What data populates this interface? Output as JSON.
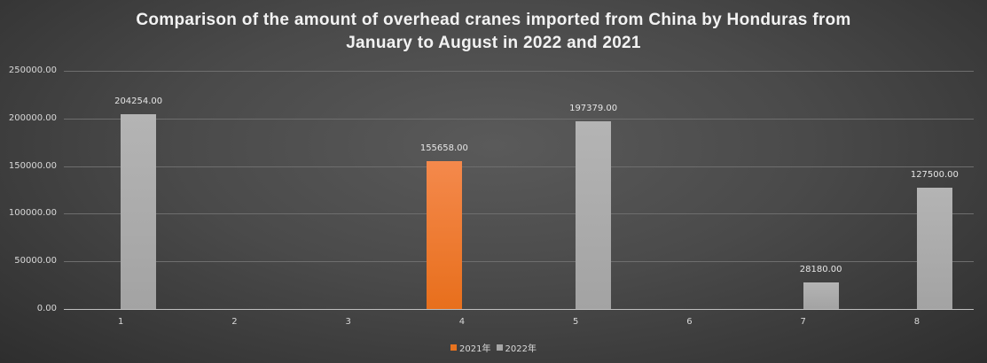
{
  "chart_data": {
    "type": "bar",
    "title": "Comparison of the amount of overhead cranes imported from China by Honduras from January to August in 2022 and 2021",
    "title_lines": [
      "Comparison of the amount of overhead cranes imported from China by Honduras from",
      "January to August in 2022 and 2021"
    ],
    "xlabel": "",
    "ylabel": "",
    "categories": [
      "1",
      "2",
      "3",
      "4",
      "5",
      "6",
      "7",
      "8"
    ],
    "series": [
      {
        "name": "2021年",
        "color": "#e8731f",
        "values": [
          0,
          0,
          0,
          155658.0,
          0,
          0,
          0,
          0
        ]
      },
      {
        "name": "2022年",
        "color": "#a6a6a6",
        "values": [
          204254.0,
          0,
          0,
          0,
          197379.0,
          0,
          28180.0,
          127500.0
        ]
      }
    ],
    "data_labels": [
      {
        "category": "1",
        "series": "2022年",
        "text": "204254.00"
      },
      {
        "category": "4",
        "series": "2021年",
        "text": "155658.00"
      },
      {
        "category": "5",
        "series": "2022年",
        "text": "197379.00"
      },
      {
        "category": "7",
        "series": "2022年",
        "text": "28180.00"
      },
      {
        "category": "8",
        "series": "2022年",
        "text": "127500.00"
      }
    ],
    "yticks": [
      "250000.00",
      "200000.00",
      "150000.00",
      "100000.00",
      "50000.00",
      "0.00"
    ],
    "ylim": [
      0,
      250000
    ],
    "grid": true,
    "legend_position": "bottom"
  },
  "legend": [
    {
      "label": "2021年",
      "color": "#e8731f"
    },
    {
      "label": "2022年",
      "color": "#a6a6a6"
    }
  ]
}
